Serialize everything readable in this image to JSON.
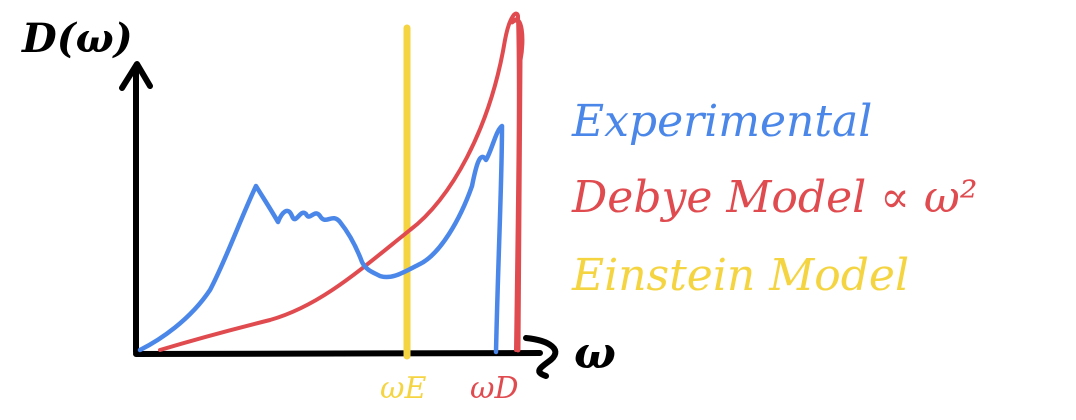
{
  "axes": {
    "y_label": "D(ω)",
    "x_label": "ω",
    "ticks": [
      {
        "label": "ωE",
        "color": "#f5d442"
      },
      {
        "label": "ωD",
        "color": "#e04b50"
      }
    ]
  },
  "legend": {
    "items": [
      {
        "label": "Experimental",
        "color": "#4b87e8"
      },
      {
        "label": "Debye Model ∝ ω²",
        "color": "#e04b50"
      },
      {
        "label": "Einstein Model",
        "color": "#f5d442"
      }
    ]
  },
  "colors": {
    "axis": "#000000",
    "experimental": "#4b87e8",
    "debye": "#e04b50",
    "einstein": "#f5d442"
  }
}
